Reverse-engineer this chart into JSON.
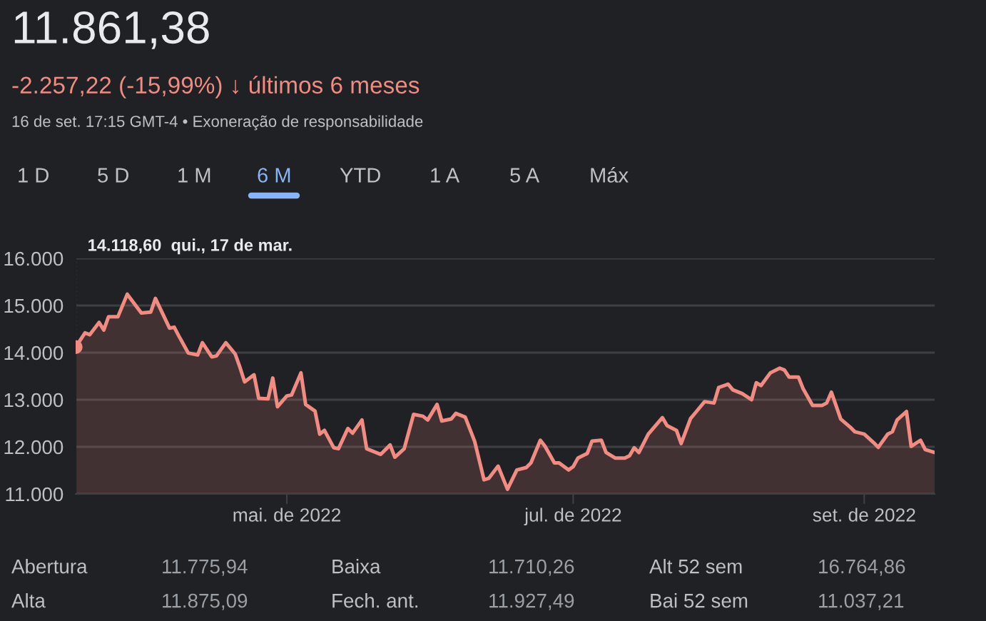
{
  "chart_data": {
    "type": "area",
    "title": "11.861,38",
    "subtitle": "-2.257,22 (-15,99%) ↓ últimos 6 meses",
    "annotations": [
      "16 de set. 17:15 GMT-4 • Exoneração de responsabilidade",
      "1 D",
      "5 D",
      "1 M",
      "6 M",
      "YTD",
      "1 A",
      "5 A",
      "Máx",
      "Abertura",
      "11.775,94",
      "Baixa",
      "11.710,26",
      "Alt 52 sem",
      "16.764,86",
      "Alta",
      "11.875,09",
      "Fech. ant.",
      "11.927,49",
      "Bai 52 sem",
      "11.037,21",
      {
        "text": "14.118,60  qui., 17 de mar.",
        "x": "2022-03-17",
        "y": 14118.6
      }
    ],
    "x": [
      "2022-03-17",
      "2022-03-19",
      "2022-03-20",
      "2022-03-22",
      "2022-03-23",
      "2022-03-24",
      "2022-03-26",
      "2022-03-28",
      "2022-03-31",
      "2022-04-02",
      "2022-04-03",
      "2022-04-06",
      "2022-04-07",
      "2022-04-08",
      "2022-04-10",
      "2022-04-12",
      "2022-04-13",
      "2022-04-15",
      "2022-04-16",
      "2022-04-18",
      "2022-04-20",
      "2022-04-21",
      "2022-04-22",
      "2022-04-24",
      "2022-04-25",
      "2022-04-27",
      "2022-04-28",
      "2022-04-29",
      "2022-05-01",
      "2022-05-02",
      "2022-05-04",
      "2022-05-05",
      "2022-05-07",
      "2022-05-08",
      "2022-05-09",
      "2022-05-11",
      "2022-05-12",
      "2022-05-14",
      "2022-05-15",
      "2022-05-17",
      "2022-05-18",
      "2022-05-21",
      "2022-05-23",
      "2022-05-24",
      "2022-05-26",
      "2022-05-28",
      "2022-05-30",
      "2022-05-31",
      "2022-06-02",
      "2022-06-03",
      "2022-06-05",
      "2022-06-06",
      "2022-06-08",
      "2022-06-10",
      "2022-06-12",
      "2022-06-13",
      "2022-06-15",
      "2022-06-17",
      "2022-06-19",
      "2022-06-21",
      "2022-06-22",
      "2022-06-24",
      "2022-06-25",
      "2022-06-27",
      "2022-06-28",
      "2022-06-30",
      "2022-07-01",
      "2022-07-02",
      "2022-07-04",
      "2022-07-05",
      "2022-07-07",
      "2022-07-08",
      "2022-07-10",
      "2022-07-12",
      "2022-07-13",
      "2022-07-14",
      "2022-07-15",
      "2022-07-17",
      "2022-07-20",
      "2022-07-21",
      "2022-07-23",
      "2022-07-24",
      "2022-07-26",
      "2022-07-27",
      "2022-07-29",
      "2022-07-31",
      "2022-08-01",
      "2022-08-03",
      "2022-08-04",
      "2022-08-06",
      "2022-08-08",
      "2022-08-09",
      "2022-08-10",
      "2022-08-12",
      "2022-08-14",
      "2022-08-15",
      "2022-08-16",
      "2022-08-18",
      "2022-08-19",
      "2022-08-21",
      "2022-08-23",
      "2022-08-24",
      "2022-08-25",
      "2022-08-27",
      "2022-08-29",
      "2022-08-30",
      "2022-09-01",
      "2022-09-03",
      "2022-09-04",
      "2022-09-06",
      "2022-09-07",
      "2022-09-08",
      "2022-09-10",
      "2022-09-11",
      "2022-09-13",
      "2022-09-14",
      "2022-09-16"
    ],
    "series": [
      {
        "color": "#f28b82",
        "values": [
          14118.6,
          14420,
          14380,
          14640,
          14480,
          14760,
          14760,
          15240,
          14840,
          14860,
          15150,
          14520,
          14540,
          14350,
          13990,
          13950,
          14210,
          13910,
          13930,
          14210,
          13970,
          13690,
          13380,
          13530,
          13030,
          13020,
          13460,
          12850,
          13080,
          13100,
          13570,
          12900,
          12760,
          12270,
          12350,
          11980,
          11960,
          12390,
          12290,
          12570,
          11960,
          11840,
          12040,
          11780,
          11960,
          12690,
          12650,
          12570,
          12900,
          12550,
          12590,
          12710,
          12630,
          12120,
          11300,
          11330,
          11590,
          11100,
          11510,
          11560,
          11660,
          12140,
          12010,
          11660,
          11660,
          11510,
          11580,
          11760,
          11860,
          12120,
          12140,
          11880,
          11760,
          11760,
          11810,
          11980,
          11880,
          12270,
          12620,
          12450,
          12350,
          12070,
          12600,
          12720,
          12960,
          12930,
          13260,
          13330,
          13210,
          13130,
          13000,
          13360,
          13300,
          13570,
          13670,
          13630,
          13480,
          13480,
          13230,
          12880,
          12880,
          12930,
          13160,
          12590,
          12420,
          12320,
          12270,
          12090,
          11990,
          12270,
          12320,
          12570,
          12750,
          12010,
          12140,
          11940,
          11880
        ]
      }
    ],
    "xlim": [
      "2022-03-17",
      "2022-09-16"
    ],
    "xticks": [
      {
        "value": "2022-05-01",
        "label": "mai. de 2022"
      },
      {
        "value": "2022-07-01",
        "label": "jul. de 2022"
      },
      {
        "value": "2022-09-01",
        "label": "set. de 2022"
      }
    ],
    "ylim": [
      11000,
      16000
    ],
    "yticks": [
      {
        "value": 11000,
        "label": "11.000"
      },
      {
        "value": 12000,
        "label": "12.000"
      },
      {
        "value": 13000,
        "label": "13.000"
      },
      {
        "value": 14000,
        "label": "14.000"
      },
      {
        "value": 15000,
        "label": "15.000"
      },
      {
        "value": 16000,
        "label": "16.000"
      }
    ],
    "grid": "y",
    "legend": false,
    "marker": "none",
    "line_style": "solid"
  }
}
